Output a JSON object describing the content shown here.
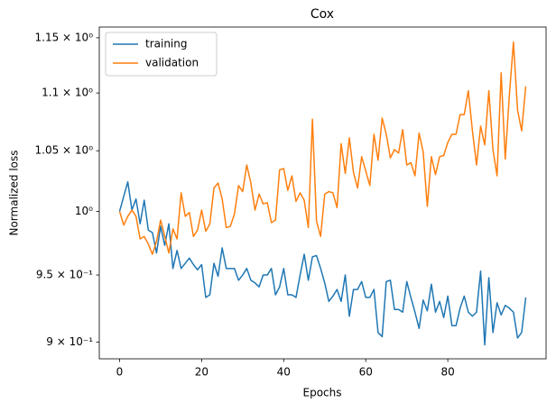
{
  "chart_data": {
    "type": "line",
    "title": "Cox",
    "xlabel": "Epochs",
    "ylabel": "Normalized loss",
    "yscale": "log",
    "legend": "upper left",
    "grid": false,
    "x": [
      0,
      1,
      2,
      3,
      4,
      5,
      6,
      7,
      8,
      9,
      10,
      11,
      12,
      13,
      14,
      15,
      16,
      17,
      18,
      19,
      20,
      21,
      22,
      23,
      24,
      25,
      26,
      27,
      28,
      29,
      30,
      31,
      32,
      33,
      34,
      35,
      36,
      37,
      38,
      39,
      40,
      41,
      42,
      43,
      44,
      45,
      46,
      47,
      48,
      49,
      50,
      51,
      52,
      53,
      54,
      55,
      56,
      57,
      58,
      59,
      60,
      61,
      62,
      63,
      64,
      65,
      66,
      67,
      68,
      69,
      70,
      71,
      72,
      73,
      74,
      75,
      76,
      77,
      78,
      79,
      80,
      81,
      82,
      83,
      84,
      85,
      86,
      87,
      88,
      89,
      90,
      91,
      92,
      93,
      94,
      95,
      96,
      97,
      98,
      99
    ],
    "xlim": [
      -4.95,
      103.95
    ],
    "xticks": [
      0,
      20,
      40,
      60,
      80
    ],
    "ylim": [
      0.888,
      1.16
    ],
    "yticks": [
      {
        "value": 0.9,
        "label": "9 × 10⁻¹"
      },
      {
        "value": 0.95,
        "label": "9.5 × 10⁻¹"
      },
      {
        "value": 1,
        "label": "10⁰"
      },
      {
        "value": 1.05,
        "label": "1.05 × 10⁰"
      },
      {
        "value": 1.1,
        "label": "1.1 × 10⁰"
      },
      {
        "value": 1.15,
        "label": "1.15 × 10⁰"
      }
    ],
    "series": [
      {
        "name": "training",
        "color": "#1f77b4",
        "values": [
          1.0,
          1.012,
          1.024,
          1.001,
          1.01,
          0.99,
          1.009,
          0.985,
          0.983,
          0.967,
          0.988,
          0.973,
          0.99,
          0.955,
          0.969,
          0.955,
          0.959,
          0.963,
          0.958,
          0.954,
          0.958,
          0.933,
          0.935,
          0.959,
          0.949,
          0.971,
          0.955,
          0.955,
          0.955,
          0.946,
          0.95,
          0.955,
          0.946,
          0.944,
          0.941,
          0.95,
          0.95,
          0.955,
          0.935,
          0.941,
          0.955,
          0.935,
          0.935,
          0.933,
          0.95,
          0.966,
          0.946,
          0.964,
          0.965,
          0.955,
          0.944,
          0.93,
          0.934,
          0.939,
          0.93,
          0.95,
          0.919,
          0.939,
          0.939,
          0.945,
          0.933,
          0.933,
          0.939,
          0.907,
          0.904,
          0.945,
          0.946,
          0.924,
          0.924,
          0.922,
          0.945,
          0.933,
          0.922,
          0.91,
          0.931,
          0.923,
          0.943,
          0.922,
          0.93,
          0.918,
          0.934,
          0.912,
          0.912,
          0.925,
          0.934,
          0.922,
          0.919,
          0.922,
          0.953,
          0.898,
          0.948,
          0.907,
          0.929,
          0.92,
          0.927,
          0.925,
          0.922,
          0.903,
          0.907,
          0.933
        ]
      },
      {
        "name": "validation",
        "color": "#ff7f0e",
        "values": [
          1.0,
          0.989,
          0.996,
          1.001,
          0.996,
          0.978,
          0.98,
          0.974,
          0.966,
          0.976,
          0.993,
          0.98,
          0.967,
          0.986,
          0.978,
          1.015,
          0.996,
          0.999,
          0.98,
          0.985,
          1.001,
          0.984,
          0.99,
          1.019,
          1.023,
          1.01,
          0.987,
          0.988,
          0.998,
          1.021,
          1.016,
          1.038,
          1.023,
          1.001,
          1.014,
          1.006,
          1.007,
          0.991,
          0.993,
          1.034,
          1.035,
          1.017,
          1.029,
          1.008,
          1.015,
          1.009,
          0.987,
          1.077,
          0.992,
          0.98,
          1.014,
          1.016,
          1.015,
          1.003,
          1.056,
          1.031,
          1.061,
          1.032,
          1.019,
          1.045,
          1.033,
          1.021,
          1.064,
          1.042,
          1.078,
          1.064,
          1.044,
          1.051,
          1.048,
          1.068,
          1.038,
          1.04,
          1.029,
          1.065,
          1.049,
          1.004,
          1.045,
          1.03,
          1.045,
          1.046,
          1.057,
          1.064,
          1.064,
          1.081,
          1.081,
          1.102,
          1.067,
          1.038,
          1.071,
          1.055,
          1.102,
          1.051,
          1.029,
          1.118,
          1.043,
          1.098,
          1.146,
          1.085,
          1.067,
          1.106
        ]
      }
    ]
  }
}
